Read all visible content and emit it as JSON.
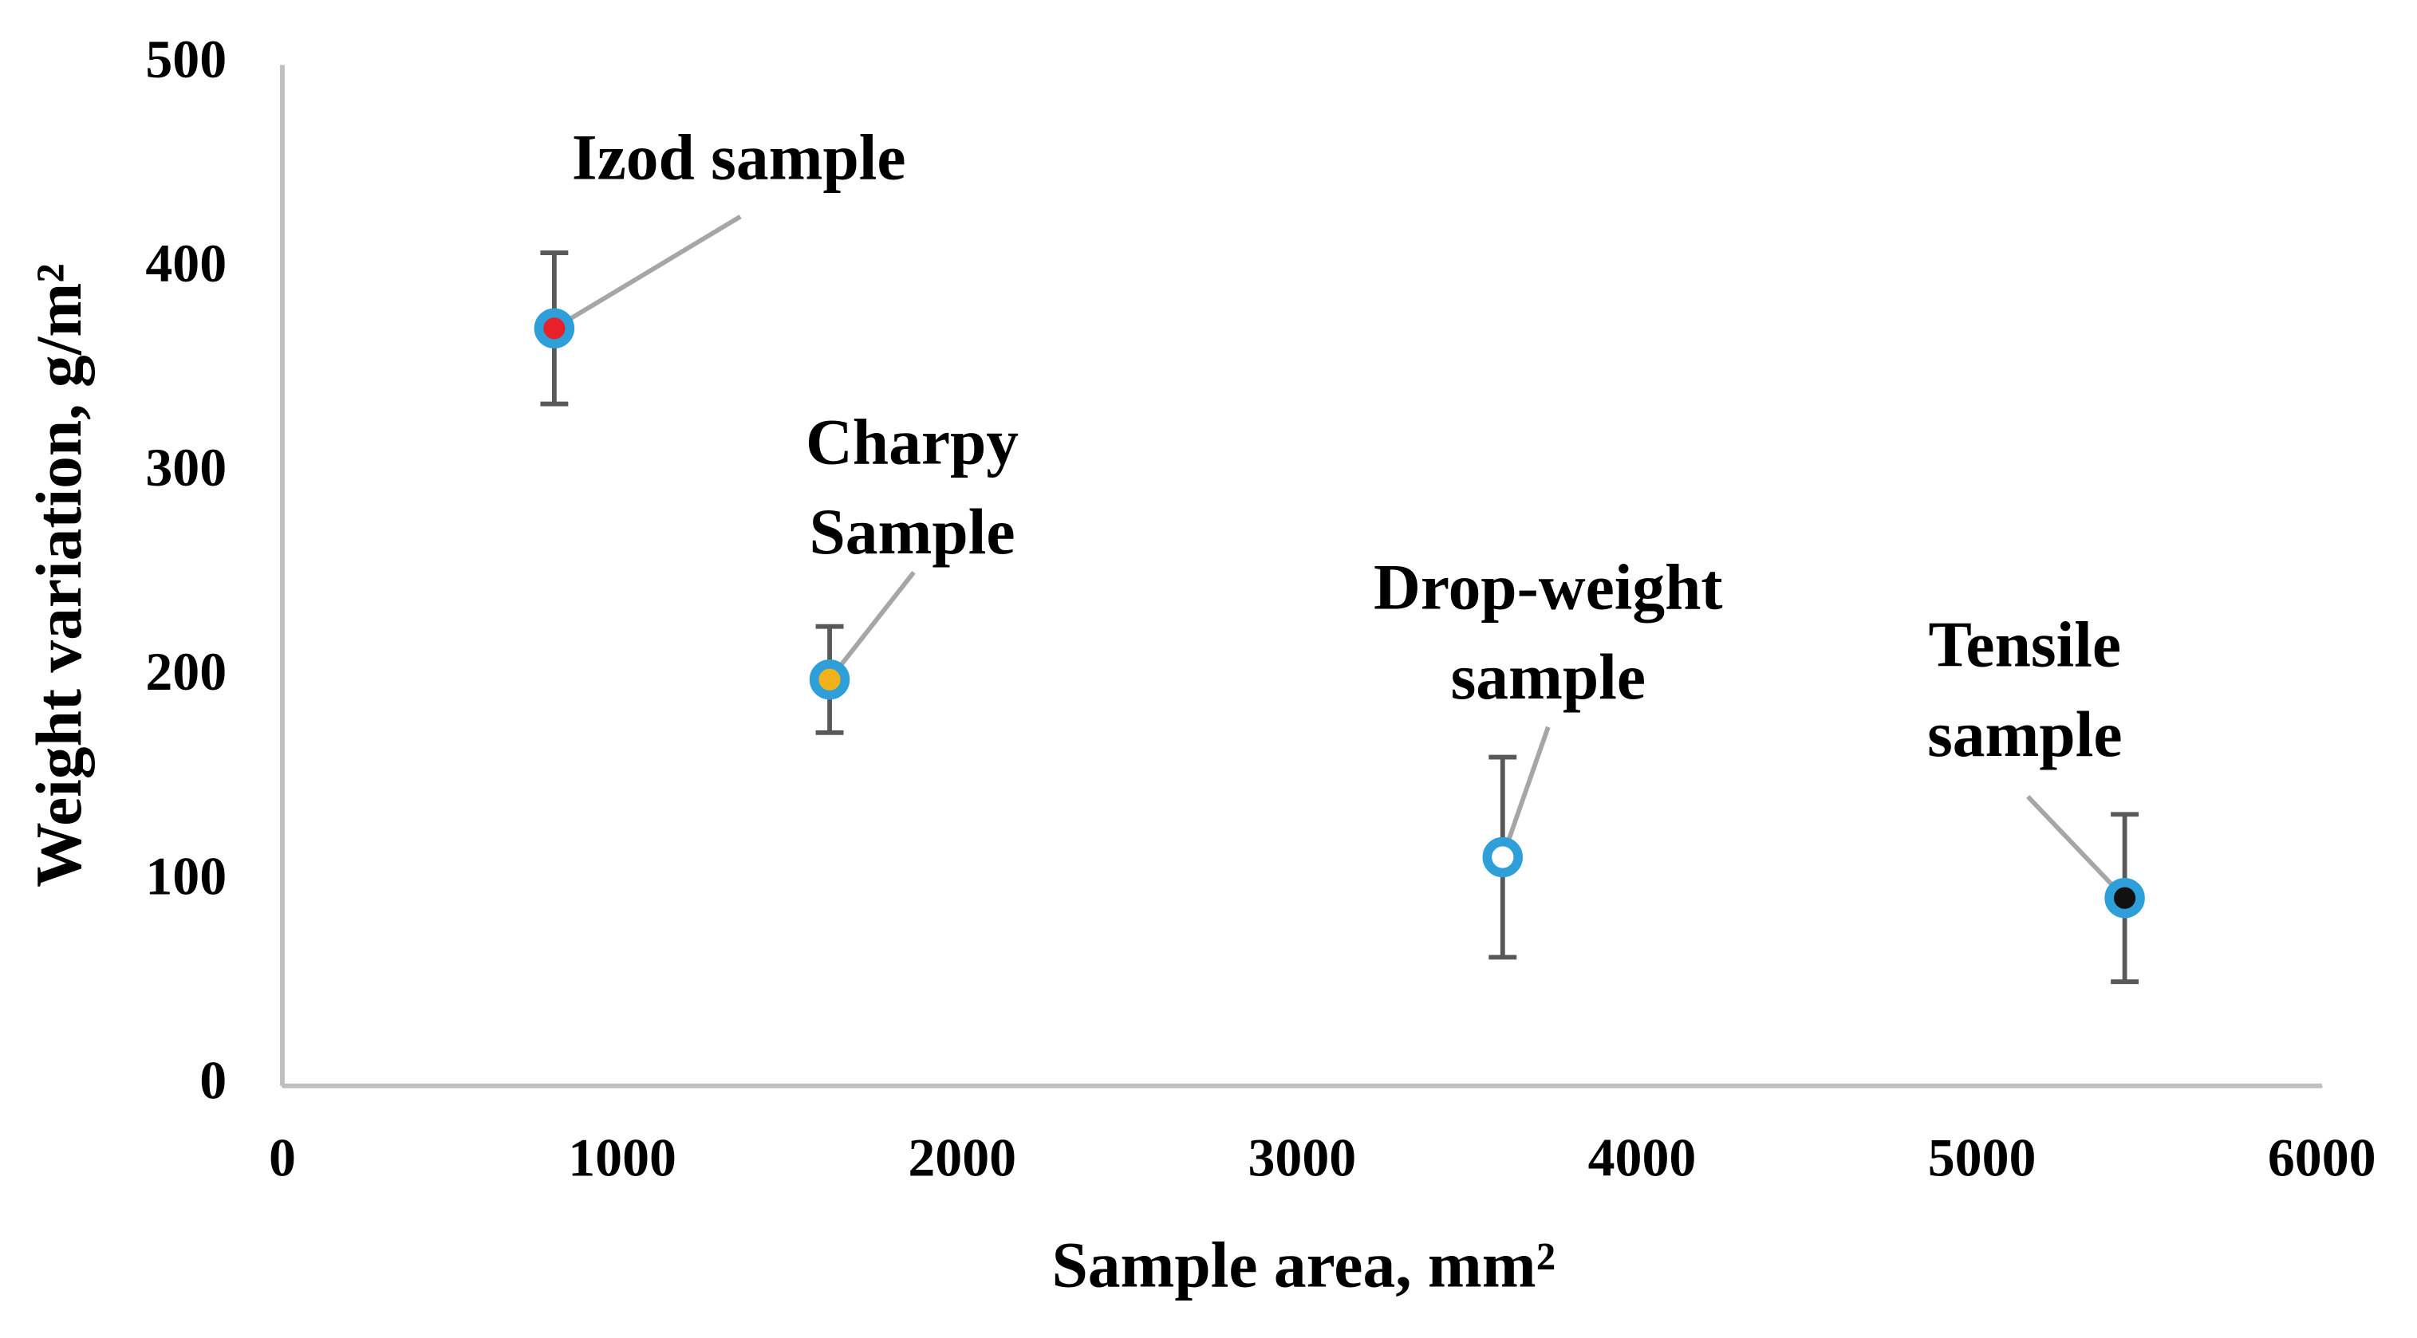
{
  "chart_data": {
    "type": "scatter",
    "x_label": "Sample area, mm²",
    "y_label": "Weight variation, g/m²",
    "x": [
      800,
      1610,
      3590,
      5420
    ],
    "series": [
      {
        "color": "#2e9fd8",
        "values": [
          371,
          199,
          112,
          92
        ],
        "errors": [
          37,
          26,
          49,
          41
        ],
        "fill_colors": [
          "#e8202a",
          "#f2b21b",
          "#ffffff",
          "#111111"
        ]
      }
    ],
    "annotations": [
      {
        "text": [
          "Izod sample"
        ]
      },
      {
        "text": [
          "Charpy",
          "Sample"
        ]
      },
      {
        "text": [
          "Drop-weight",
          "sample"
        ]
      },
      {
        "text": [
          "Tensile",
          "sample"
        ]
      }
    ],
    "xlim": [
      0,
      6000
    ],
    "xticks": [
      0,
      1000,
      2000,
      3000,
      4000,
      5000,
      6000
    ],
    "ylim": [
      0,
      500
    ],
    "yticks": [
      0,
      100,
      200,
      300,
      400,
      500
    ],
    "grid": false
  }
}
